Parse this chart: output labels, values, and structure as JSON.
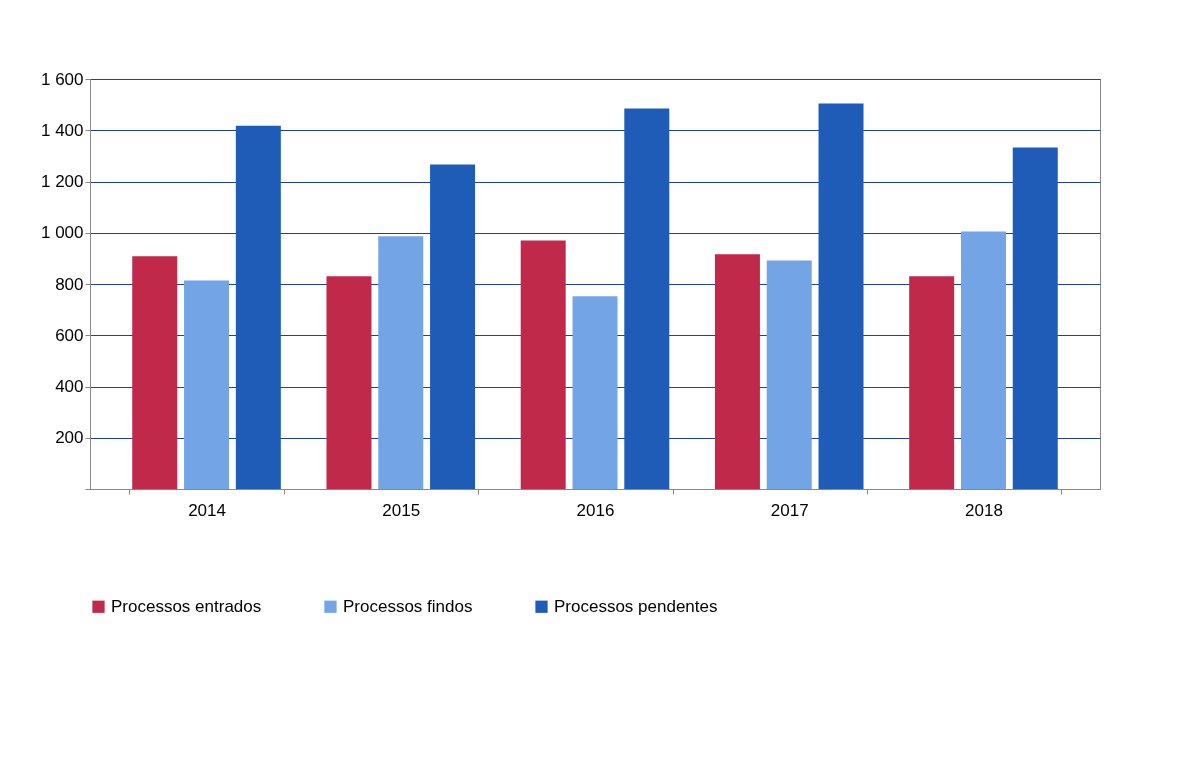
{
  "chart_data": {
    "type": "bar",
    "categories": [
      "2014",
      "2015",
      "2016",
      "2017",
      "2018"
    ],
    "series": [
      {
        "name": "Processos entrados",
        "color": "#c0294a",
        "values": [
          908,
          830,
          970,
          916,
          830
        ]
      },
      {
        "name": "Processos findos",
        "color": "#73a4e6",
        "values": [
          814,
          986,
          752,
          892,
          1005
        ]
      },
      {
        "name": "Processos pendentes",
        "color": "#1f5cb8",
        "values": [
          1418,
          1266,
          1485,
          1504,
          1333
        ]
      }
    ],
    "ylim": [
      0,
      1600
    ],
    "yticks": [
      {
        "value": 0,
        "label": null
      },
      {
        "value": 200,
        "label": "200"
      },
      {
        "value": 400,
        "label": "400"
      },
      {
        "value": 600,
        "label": "600"
      },
      {
        "value": 800,
        "label": "800"
      },
      {
        "value": 1000,
        "label": "1 000"
      },
      {
        "value": 1200,
        "label": "1 200"
      },
      {
        "value": 1400,
        "label": "1 400"
      },
      {
        "value": 1600,
        "label": "1 600"
      }
    ],
    "grid": "y",
    "legend": "bottom"
  }
}
